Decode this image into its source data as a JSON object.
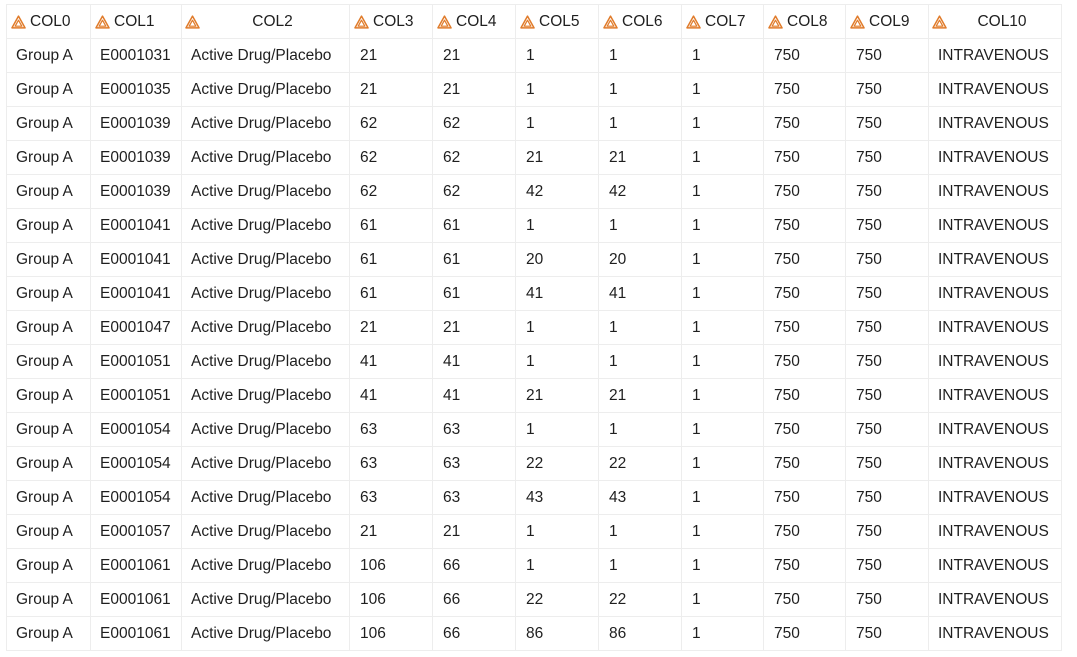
{
  "columns": [
    {
      "key": "COL0",
      "label": "COL0",
      "icon": "warning-triangle-icon"
    },
    {
      "key": "COL1",
      "label": "COL1",
      "icon": "warning-triangle-icon"
    },
    {
      "key": "COL2",
      "label": "COL2",
      "icon": "warning-triangle-icon"
    },
    {
      "key": "COL3",
      "label": "COL3",
      "icon": "warning-triangle-icon"
    },
    {
      "key": "COL4",
      "label": "COL4",
      "icon": "warning-triangle-icon"
    },
    {
      "key": "COL5",
      "label": "COL5",
      "icon": "warning-triangle-icon"
    },
    {
      "key": "COL6",
      "label": "COL6",
      "icon": "warning-triangle-icon"
    },
    {
      "key": "COL7",
      "label": "COL7",
      "icon": "warning-triangle-icon"
    },
    {
      "key": "COL8",
      "label": "COL8",
      "icon": "warning-triangle-icon"
    },
    {
      "key": "COL9",
      "label": "COL9",
      "icon": "warning-triangle-icon"
    },
    {
      "key": "COL10",
      "label": "COL10",
      "icon": "warning-triangle-icon"
    }
  ],
  "colors": {
    "icon_accent": "#e07b2a",
    "grid_line": "#ededed",
    "text": "#1f1f1f"
  },
  "rows": [
    [
      "Group A",
      "E0001031",
      "Active Drug/Placebo",
      "21",
      "21",
      "1",
      "1",
      "1",
      "750",
      "750",
      "INTRAVENOUS"
    ],
    [
      "Group A",
      "E0001035",
      "Active Drug/Placebo",
      "21",
      "21",
      "1",
      "1",
      "1",
      "750",
      "750",
      "INTRAVENOUS"
    ],
    [
      "Group A",
      "E0001039",
      "Active Drug/Placebo",
      "62",
      "62",
      "1",
      "1",
      "1",
      "750",
      "750",
      "INTRAVENOUS"
    ],
    [
      "Group A",
      "E0001039",
      "Active Drug/Placebo",
      "62",
      "62",
      "21",
      "21",
      "1",
      "750",
      "750",
      "INTRAVENOUS"
    ],
    [
      "Group A",
      "E0001039",
      "Active Drug/Placebo",
      "62",
      "62",
      "42",
      "42",
      "1",
      "750",
      "750",
      "INTRAVENOUS"
    ],
    [
      "Group A",
      "E0001041",
      "Active Drug/Placebo",
      "61",
      "61",
      "1",
      "1",
      "1",
      "750",
      "750",
      "INTRAVENOUS"
    ],
    [
      "Group A",
      "E0001041",
      "Active Drug/Placebo",
      "61",
      "61",
      "20",
      "20",
      "1",
      "750",
      "750",
      "INTRAVENOUS"
    ],
    [
      "Group A",
      "E0001041",
      "Active Drug/Placebo",
      "61",
      "61",
      "41",
      "41",
      "1",
      "750",
      "750",
      "INTRAVENOUS"
    ],
    [
      "Group A",
      "E0001047",
      "Active Drug/Placebo",
      "21",
      "21",
      "1",
      "1",
      "1",
      "750",
      "750",
      "INTRAVENOUS"
    ],
    [
      "Group A",
      "E0001051",
      "Active Drug/Placebo",
      "41",
      "41",
      "1",
      "1",
      "1",
      "750",
      "750",
      "INTRAVENOUS"
    ],
    [
      "Group A",
      "E0001051",
      "Active Drug/Placebo",
      "41",
      "41",
      "21",
      "21",
      "1",
      "750",
      "750",
      "INTRAVENOUS"
    ],
    [
      "Group A",
      "E0001054",
      "Active Drug/Placebo",
      "63",
      "63",
      "1",
      "1",
      "1",
      "750",
      "750",
      "INTRAVENOUS"
    ],
    [
      "Group A",
      "E0001054",
      "Active Drug/Placebo",
      "63",
      "63",
      "22",
      "22",
      "1",
      "750",
      "750",
      "INTRAVENOUS"
    ],
    [
      "Group A",
      "E0001054",
      "Active Drug/Placebo",
      "63",
      "63",
      "43",
      "43",
      "1",
      "750",
      "750",
      "INTRAVENOUS"
    ],
    [
      "Group A",
      "E0001057",
      "Active Drug/Placebo",
      "21",
      "21",
      "1",
      "1",
      "1",
      "750",
      "750",
      "INTRAVENOUS"
    ],
    [
      "Group A",
      "E0001061",
      "Active Drug/Placebo",
      "106",
      "66",
      "1",
      "1",
      "1",
      "750",
      "750",
      "INTRAVENOUS"
    ],
    [
      "Group A",
      "E0001061",
      "Active Drug/Placebo",
      "106",
      "66",
      "22",
      "22",
      "1",
      "750",
      "750",
      "INTRAVENOUS"
    ],
    [
      "Group A",
      "E0001061",
      "Active Drug/Placebo",
      "106",
      "66",
      "86",
      "86",
      "1",
      "750",
      "750",
      "INTRAVENOUS"
    ]
  ]
}
